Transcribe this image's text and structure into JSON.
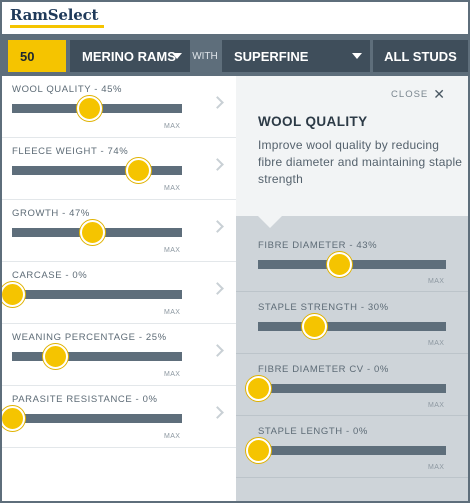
{
  "app": {
    "logo": "RamSelect"
  },
  "filterbar": {
    "count": "50",
    "breed": "MERINO RAMS",
    "with_label": "WITH",
    "micron": "SUPERFINE",
    "studs": "ALL STUDS"
  },
  "traits": [
    {
      "label": "WOOL QUALITY - 45%",
      "value": 45,
      "max_label": "MAX"
    },
    {
      "label": "FLEECE WEIGHT - 74%",
      "value": 74,
      "max_label": "MAX"
    },
    {
      "label": "GROWTH - 47%",
      "value": 47,
      "max_label": "MAX"
    },
    {
      "label": "CARCASE - 0%",
      "value": 0,
      "max_label": "MAX"
    },
    {
      "label": "WEANING PERCENTAGE - 25%",
      "value": 25,
      "max_label": "MAX"
    },
    {
      "label": "PARASITE RESISTANCE - 0%",
      "value": 0,
      "max_label": "MAX"
    }
  ],
  "detail": {
    "close_label": "CLOSE",
    "title": "WOOL QUALITY",
    "description": "Improve wool quality by reducing fibre diameter and maintaining staple strength",
    "subtraits": [
      {
        "label": "FIBRE DIAMETER - 43%",
        "value": 43,
        "max_label": "MAX"
      },
      {
        "label": "STAPLE STRENGTH - 30%",
        "value": 30,
        "max_label": "MAX"
      },
      {
        "label": "FIBRE DIAMETER CV - 0%",
        "value": 0,
        "max_label": "MAX"
      },
      {
        "label": "STAPLE LENGTH - 0%",
        "value": 0,
        "max_label": "MAX"
      }
    ]
  },
  "colors": {
    "accent": "#f5c400",
    "bar": "#5e6e7b",
    "panel": "#ced4d9"
  }
}
